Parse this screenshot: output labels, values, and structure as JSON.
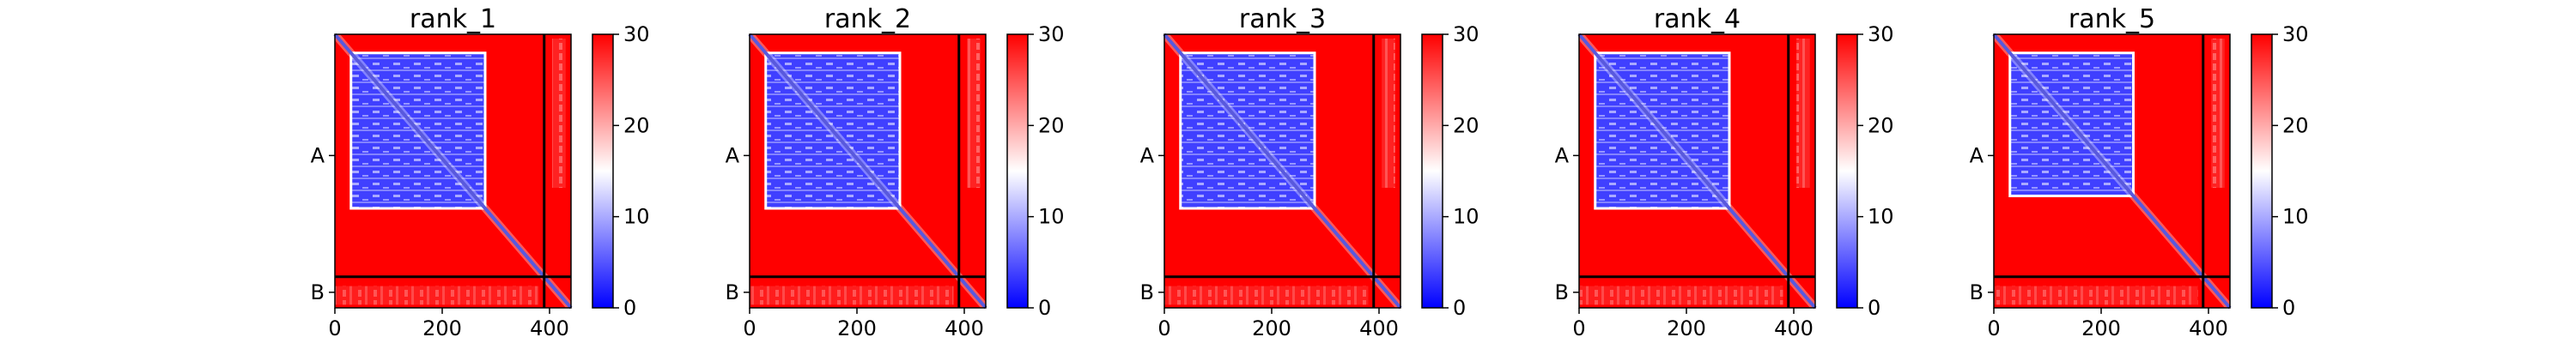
{
  "chart_data": {
    "type": "heatmap",
    "colormap": {
      "low": "#0000ff",
      "mid": "#ffffff",
      "high": "#ff0000"
    },
    "colorbar": {
      "range": [
        0,
        30
      ],
      "ticks": [
        "0",
        "10",
        "20",
        "30"
      ]
    },
    "x_ticks": [
      "0",
      "200",
      "400"
    ],
    "x_tick_values": [
      0,
      200,
      400
    ],
    "y_ticks": [
      "A",
      "B"
    ],
    "chain_boundary": 390,
    "sequence_length": 440,
    "panels": [
      {
        "title": "rank_1",
        "domain_start": 30,
        "domain_end": 280,
        "side_strip": true
      },
      {
        "title": "rank_2",
        "domain_start": 30,
        "domain_end": 280,
        "side_strip": true
      },
      {
        "title": "rank_3",
        "domain_start": 30,
        "domain_end": 280,
        "side_strip": true
      },
      {
        "title": "rank_4",
        "domain_start": 30,
        "domain_end": 280,
        "side_strip": true
      },
      {
        "title": "rank_5",
        "domain_start": 30,
        "domain_end": 260,
        "side_strip": true
      }
    ]
  }
}
